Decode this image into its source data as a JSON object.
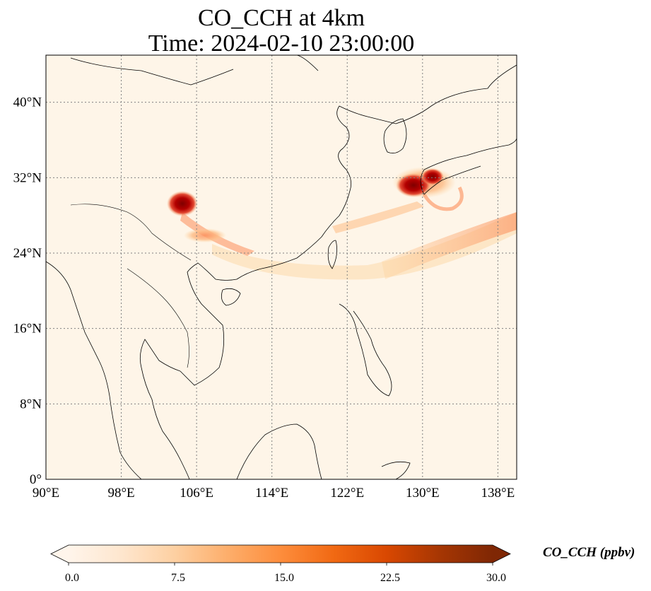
{
  "title": {
    "line1": "CO_CCH at 4km",
    "line2": "Time: 2024-02-10 23:00:00"
  },
  "map": {
    "lon_range": [
      90,
      140
    ],
    "lat_range": [
      0,
      45
    ],
    "background_color": "#fef5e8",
    "lat_ticks": [
      {
        "value": 0,
        "label": "0°"
      },
      {
        "value": 8,
        "label": "8°N"
      },
      {
        "value": 16,
        "label": "16°N"
      },
      {
        "value": 24,
        "label": "24°N"
      },
      {
        "value": 32,
        "label": "32°N"
      },
      {
        "value": 40,
        "label": "40°N"
      }
    ],
    "lon_ticks": [
      {
        "value": 90,
        "label": "90°E"
      },
      {
        "value": 98,
        "label": "98°E"
      },
      {
        "value": 106,
        "label": "106°E"
      },
      {
        "value": 114,
        "label": "114°E"
      },
      {
        "value": 122,
        "label": "122°E"
      },
      {
        "value": 130,
        "label": "130°E"
      },
      {
        "value": 138,
        "label": "138°E"
      }
    ],
    "gridlines": true
  },
  "colorbar": {
    "title": "CO_CCH (ppbv)",
    "min": 0,
    "max": 30,
    "extend": "both",
    "ticks": [
      "0.0",
      "7.5",
      "15.0",
      "22.5",
      "30.0"
    ],
    "colormap": [
      "#fff5eb",
      "#fee6ce",
      "#fdd0a2",
      "#fdae6b",
      "#fd8d3c",
      "#f16913",
      "#d94801",
      "#a63603",
      "#7f2704"
    ]
  }
}
